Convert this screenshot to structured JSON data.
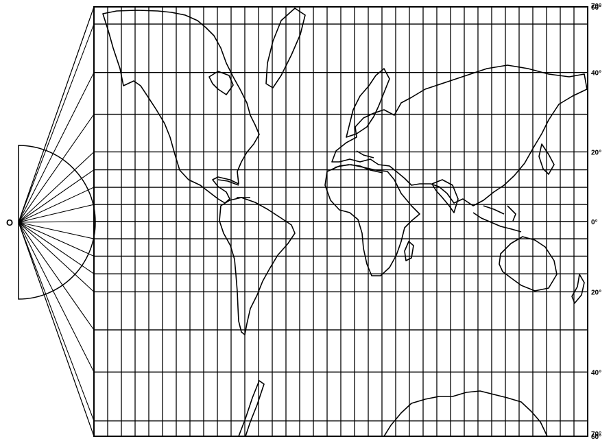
{
  "figure": {
    "origin_label": "O",
    "latitude_labels": [
      {
        "lat": 70,
        "label": "70°"
      },
      {
        "lat": 60,
        "label": "60°"
      },
      {
        "lat": 40,
        "label": "40°"
      },
      {
        "lat": 20,
        "label": "20°"
      },
      {
        "lat": 0,
        "label": "0°"
      },
      {
        "lat": -20,
        "label": "20°"
      },
      {
        "lat": -40,
        "label": "40°"
      },
      {
        "lat": -60,
        "label": "60°"
      },
      {
        "lat": -70,
        "label": "70°"
      }
    ],
    "parallels_deg": [
      70,
      60,
      50,
      40,
      30,
      20,
      15,
      10,
      5,
      0,
      -5,
      -10,
      -15,
      -20,
      -30,
      -40,
      -50,
      -60,
      -70
    ],
    "meridian_count": 36,
    "projection": "Mercator (cylindrical) with projection rays from origin O",
    "line_color": "#000000",
    "background_color": "#ffffff"
  }
}
